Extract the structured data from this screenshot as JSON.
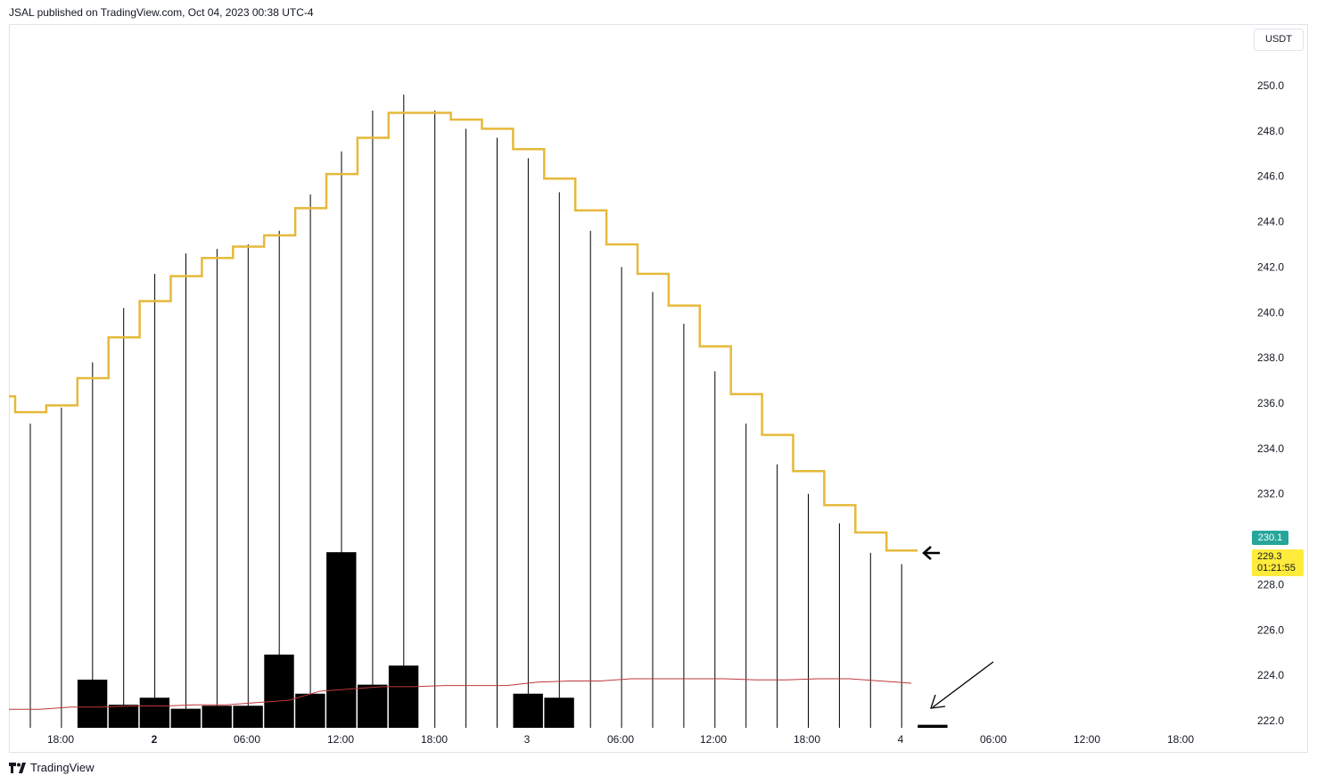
{
  "header": {
    "text": "JSAL published on TradingView.com, Oct 04, 2023 00:38 UTC-4"
  },
  "footer": {
    "brand": "TradingView"
  },
  "scale": {
    "currency": "USDT"
  },
  "price_tags": {
    "green_value": "230.1",
    "yellow_value": "229.3",
    "countdown": "01:21:55",
    "green_color": "#26a69a",
    "yellow_color": "#ffeb3b"
  },
  "colors": {
    "step_line": "#e6b93a",
    "ma_line": "#c0373c",
    "bars": "#000000"
  },
  "chart_data": {
    "type": "bar",
    "y_axis": {
      "min": 222,
      "max": 250,
      "ticks": [
        "222.0",
        "224.0",
        "226.0",
        "228.0",
        "230.0",
        "232.0",
        "234.0",
        "236.0",
        "238.0",
        "240.0",
        "242.0",
        "244.0",
        "246.0",
        "248.0",
        "250.0"
      ]
    },
    "x_axis": {
      "labels": [
        "18:00",
        "2",
        "06:00",
        "12:00",
        "18:00",
        "3",
        "06:00",
        "12:00",
        "18:00",
        "4",
        "06:00",
        "12:00",
        "18:00"
      ],
      "bold_labels": [
        "2"
      ]
    },
    "step_series": [
      236.3,
      235.6,
      235.9,
      237.1,
      238.9,
      240.5,
      241.6,
      242.4,
      242.9,
      243.4,
      244.6,
      246.1,
      247.7,
      248.8,
      248.8,
      248.5,
      248.1,
      247.2,
      245.9,
      244.5,
      243.0,
      241.7,
      240.3,
      238.5,
      236.4,
      234.6,
      233.0,
      231.5,
      230.3,
      229.5
    ],
    "wick_highs": [
      235.1,
      235.8,
      237.8,
      240.2,
      241.7,
      242.6,
      242.8,
      243.0,
      243.6,
      245.2,
      247.1,
      248.9,
      249.6,
      248.9,
      248.1,
      247.7,
      246.8,
      245.3,
      243.6,
      242.0,
      240.9,
      239.5,
      237.4,
      235.1,
      233.3,
      232.0,
      230.7,
      229.4,
      228.9
    ],
    "volume_bars": [
      0,
      4.8,
      2.3,
      3.0,
      1.9,
      2.2,
      2.2,
      7.3,
      3.4,
      17.5,
      4.3,
      6.2,
      0,
      0,
      0,
      3.4,
      3.0,
      0,
      0,
      0,
      0,
      0,
      0,
      0,
      0,
      0,
      0,
      0,
      0.3
    ],
    "ma_series": [
      222.5,
      222.5,
      222.6,
      222.6,
      222.65,
      222.65,
      222.7,
      222.7,
      222.8,
      222.9,
      223.3,
      223.4,
      223.5,
      223.5,
      223.55,
      223.55,
      223.55,
      223.7,
      223.75,
      223.75,
      223.85,
      223.85,
      223.85,
      223.85,
      223.8,
      223.8,
      223.85,
      223.85,
      223.75,
      223.65
    ]
  }
}
